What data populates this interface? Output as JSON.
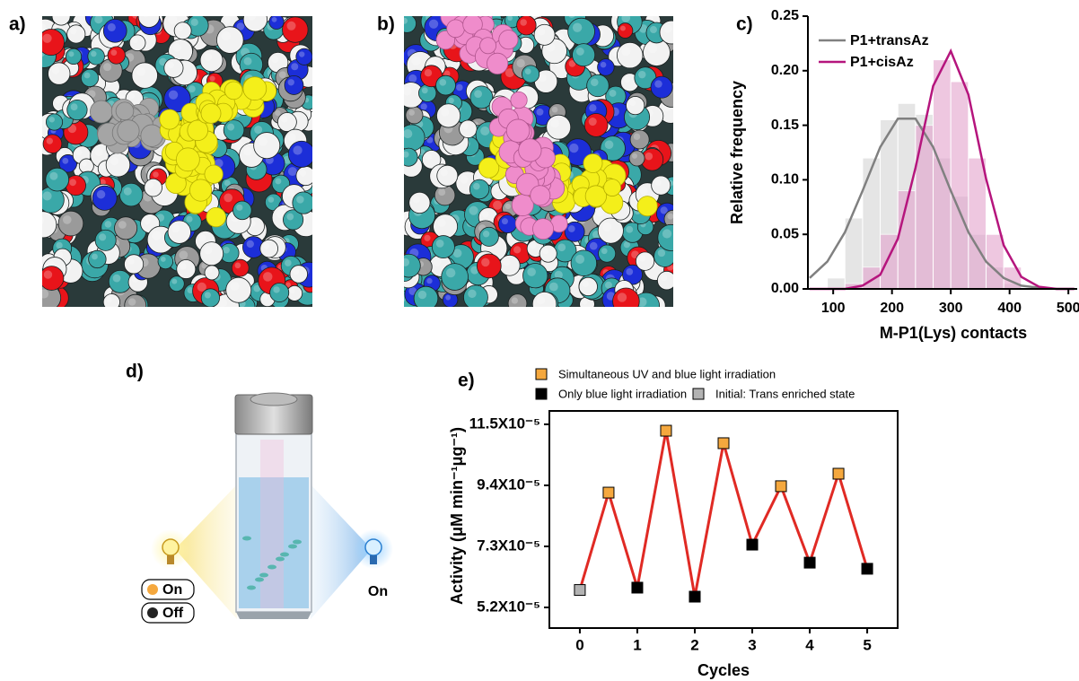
{
  "panel_labels": [
    "a)",
    "b)",
    "c)",
    "d)",
    "e)"
  ],
  "diagram": {
    "left_lamp": [
      "On",
      "Off"
    ],
    "right_lamp": "On"
  },
  "chart_data": [
    {
      "type": "histogram",
      "xlabel": "M-P1(Lys) contacts",
      "ylabel": "Relative frequency",
      "bins": [
        90,
        120,
        150,
        180,
        210,
        240,
        270,
        300,
        330,
        360,
        390,
        420
      ],
      "fit_x": [
        60,
        90,
        120,
        150,
        180,
        210,
        240,
        270,
        300,
        330,
        360,
        390,
        420,
        450,
        480,
        510
      ],
      "series": [
        {
          "name": "P1+transAz",
          "color": "#808080",
          "bar_color": "#d4d4d4",
          "values": [
            0.01,
            0.065,
            0.12,
            0.155,
            0.17,
            0.16,
            0.12,
            0.085,
            0.05,
            0.02,
            0.005
          ],
          "fit_values": [
            0.01,
            0.025,
            0.052,
            0.09,
            0.13,
            0.156,
            0.156,
            0.13,
            0.09,
            0.052,
            0.025,
            0.01,
            0.003,
            0.001,
            0,
            0
          ]
        },
        {
          "name": "P1+cisAz",
          "color": "#b5157d",
          "bar_color": "#e3a2cd",
          "values": [
            0,
            0.005,
            0.02,
            0.05,
            0.09,
            0.15,
            0.21,
            0.19,
            0.12,
            0.05,
            0.02
          ],
          "fit_values": [
            0,
            0,
            0,
            0.003,
            0.013,
            0.046,
            0.111,
            0.186,
            0.218,
            0.178,
            0.101,
            0.04,
            0.011,
            0.002,
            0,
            0
          ]
        }
      ],
      "xlim": [
        57,
        515
      ],
      "xticks": [
        100,
        200,
        300,
        400,
        500
      ],
      "ylim": [
        0,
        0.25
      ],
      "yticks": [
        {
          "value": 0,
          "label": "0.00"
        },
        {
          "value": 0.05,
          "label": "0.05"
        },
        {
          "value": 0.1,
          "label": "0.10"
        },
        {
          "value": 0.15,
          "label": "0.15"
        },
        {
          "value": 0.2,
          "label": "0.20"
        },
        {
          "value": 0.25,
          "label": "0.25"
        }
      ]
    },
    {
      "type": "line",
      "xlabel": "Cycles",
      "ylabel": "Activity (μM min⁻¹μg⁻¹)",
      "x": [
        0,
        0.5,
        1,
        1.5,
        2,
        2.5,
        3,
        3.5,
        4,
        4.5,
        5
      ],
      "series": [
        {
          "color": "#e02a24",
          "values": [
            5.8e-05,
            9.15e-05,
            5.88e-05,
            0.0001128,
            5.57e-05,
            0.0001085,
            7.36e-05,
            9.37e-05,
            6.74e-05,
            9.8e-05,
            6.53e-05
          ],
          "marker_colors": [
            "#b3b3b3",
            "#f5a83e",
            "#000000",
            "#f5a83e",
            "#000000",
            "#f5a83e",
            "#000000",
            "#f5a83e",
            "#000000",
            "#f5a83e",
            "#000000"
          ]
        }
      ],
      "legend": [
        {
          "label": "Simultaneous UV and blue light irradiation",
          "color": "#f5a83e"
        },
        {
          "label": "Only blue light irradiation",
          "color": "#000000"
        },
        {
          "label": "Initial: Trans enriched state",
          "color": "#b3b3b3"
        }
      ],
      "xlim": [
        -0.53,
        5.53
      ],
      "xticks": [
        0,
        1,
        2,
        3,
        4,
        5
      ],
      "ylim": [
        4.49e-05,
        0.0001196
      ],
      "yticks": [
        {
          "value": 5.2e-05,
          "label": "5.2X10⁻⁵"
        },
        {
          "value": 7.3e-05,
          "label": "7.3X10⁻⁵"
        },
        {
          "value": 9.4e-05,
          "label": "9.4X10⁻⁵"
        },
        {
          "value": 0.000115,
          "label": "11.5X10⁻⁵"
        }
      ]
    }
  ]
}
